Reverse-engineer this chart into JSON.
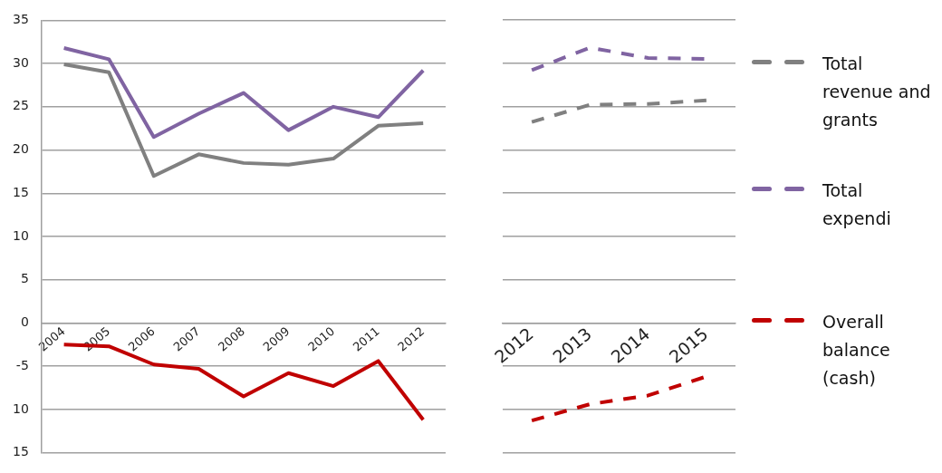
{
  "chart_data": [
    {
      "type": "line",
      "categories": [
        "2004",
        "2005",
        "2006",
        "2007",
        "2008",
        "2009",
        "2010",
        "2011",
        "2012"
      ],
      "series": [
        {
          "color": "#808080",
          "values": [
            29.9,
            29,
            17,
            19.5,
            18.5,
            18.3,
            19,
            22.8,
            23.1
          ]
        },
        {
          "color": "#8064a2",
          "values": [
            31.8,
            30.5,
            21.5,
            24.2,
            26.6,
            22.3,
            25,
            23.8,
            29.2
          ]
        },
        {
          "color": "#c00000",
          "values": [
            -2.5,
            -2.7,
            -4.8,
            -5.3,
            -8.5,
            -5.8,
            -7.3,
            -4.4,
            -11.2
          ]
        }
      ],
      "ylim": [
        -15,
        35
      ],
      "yticks": [
        35,
        30,
        25,
        20,
        15,
        10,
        5,
        0,
        -5,
        {
          "value": -10,
          "label": "10"
        },
        {
          "value": -15,
          "label": "15"
        }
      ],
      "grid": "y",
      "legend": false,
      "line_style": "solid",
      "marker": "none"
    },
    {
      "type": "line",
      "categories": [
        "2012",
        "2013",
        "2014",
        "2015"
      ],
      "series": [
        {
          "name": "Total revenue and grants",
          "color": "#808080",
          "values": [
            23.2,
            25.2,
            25.3,
            25.7
          ]
        },
        {
          "name": "Total expendi",
          "color": "#8064a2",
          "values": [
            29.2,
            31.8,
            30.6,
            30.5
          ]
        },
        {
          "name": "Overall balance (cash)",
          "color": "#c00000",
          "values": [
            -11.3,
            -9.4,
            -8.4,
            -6.2
          ]
        }
      ],
      "ylim": [
        -15,
        35
      ],
      "yticks": [
        35,
        30,
        25,
        20,
        15,
        10,
        5,
        0,
        -5,
        -10,
        -15
      ],
      "grid": "y",
      "legend": "right",
      "line_style": "dashed",
      "marker": "none",
      "tick_labels": "x"
    }
  ]
}
